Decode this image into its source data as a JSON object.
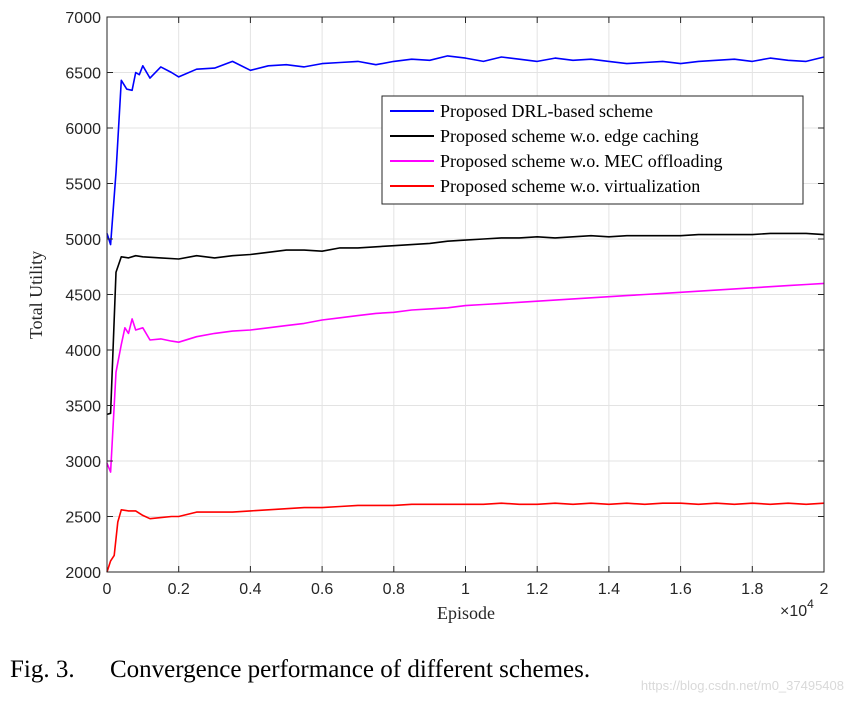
{
  "chart_data": {
    "type": "line",
    "xlabel": "Episode",
    "ylabel": "Total Utility",
    "x_multiplier": "×10",
    "x_multiplier_exp": "4",
    "xlim": [
      0,
      2
    ],
    "ylim": [
      2000,
      7000
    ],
    "x_ticks": [
      "0",
      "0.2",
      "0.4",
      "0.6",
      "0.8",
      "1",
      "1.2",
      "1.4",
      "1.6",
      "1.8",
      "2"
    ],
    "y_ticks": [
      "2000",
      "2500",
      "3000",
      "3500",
      "4000",
      "4500",
      "5000",
      "5500",
      "6000",
      "6500",
      "7000"
    ],
    "grid": true,
    "legend_position": "upper-right",
    "series": [
      {
        "name": "Proposed DRL-based scheme",
        "color": "#0000ff",
        "points": [
          [
            0,
            5050
          ],
          [
            0.01,
            4950
          ],
          [
            0.025,
            5600
          ],
          [
            0.04,
            6430
          ],
          [
            0.055,
            6350
          ],
          [
            0.07,
            6340
          ],
          [
            0.08,
            6500
          ],
          [
            0.09,
            6480
          ],
          [
            0.1,
            6560
          ],
          [
            0.12,
            6450
          ],
          [
            0.15,
            6550
          ],
          [
            0.18,
            6500
          ],
          [
            0.2,
            6460
          ],
          [
            0.25,
            6530
          ],
          [
            0.3,
            6540
          ],
          [
            0.35,
            6600
          ],
          [
            0.4,
            6520
          ],
          [
            0.45,
            6560
          ],
          [
            0.5,
            6570
          ],
          [
            0.55,
            6550
          ],
          [
            0.6,
            6580
          ],
          [
            0.65,
            6590
          ],
          [
            0.7,
            6600
          ],
          [
            0.75,
            6570
          ],
          [
            0.8,
            6600
          ],
          [
            0.85,
            6620
          ],
          [
            0.9,
            6610
          ],
          [
            0.95,
            6650
          ],
          [
            1.0,
            6630
          ],
          [
            1.05,
            6600
          ],
          [
            1.1,
            6640
          ],
          [
            1.15,
            6620
          ],
          [
            1.2,
            6600
          ],
          [
            1.25,
            6630
          ],
          [
            1.3,
            6610
          ],
          [
            1.35,
            6620
          ],
          [
            1.4,
            6600
          ],
          [
            1.45,
            6580
          ],
          [
            1.5,
            6590
          ],
          [
            1.55,
            6600
          ],
          [
            1.6,
            6580
          ],
          [
            1.65,
            6600
          ],
          [
            1.7,
            6610
          ],
          [
            1.75,
            6620
          ],
          [
            1.8,
            6600
          ],
          [
            1.85,
            6630
          ],
          [
            1.9,
            6610
          ],
          [
            1.95,
            6600
          ],
          [
            2.0,
            6640
          ]
        ]
      },
      {
        "name": "Proposed scheme w.o. edge caching",
        "color": "#000000",
        "points": [
          [
            0,
            3420
          ],
          [
            0.01,
            3430
          ],
          [
            0.025,
            4700
          ],
          [
            0.04,
            4840
          ],
          [
            0.06,
            4830
          ],
          [
            0.08,
            4850
          ],
          [
            0.1,
            4840
          ],
          [
            0.15,
            4830
          ],
          [
            0.2,
            4820
          ],
          [
            0.25,
            4850
          ],
          [
            0.3,
            4830
          ],
          [
            0.35,
            4850
          ],
          [
            0.4,
            4860
          ],
          [
            0.45,
            4880
          ],
          [
            0.5,
            4900
          ],
          [
            0.55,
            4900
          ],
          [
            0.6,
            4890
          ],
          [
            0.65,
            4920
          ],
          [
            0.7,
            4920
          ],
          [
            0.75,
            4930
          ],
          [
            0.8,
            4940
          ],
          [
            0.85,
            4950
          ],
          [
            0.9,
            4960
          ],
          [
            0.95,
            4980
          ],
          [
            1.0,
            4990
          ],
          [
            1.05,
            5000
          ],
          [
            1.1,
            5010
          ],
          [
            1.15,
            5010
          ],
          [
            1.2,
            5020
          ],
          [
            1.25,
            5010
          ],
          [
            1.3,
            5020
          ],
          [
            1.35,
            5030
          ],
          [
            1.4,
            5020
          ],
          [
            1.45,
            5030
          ],
          [
            1.5,
            5030
          ],
          [
            1.55,
            5030
          ],
          [
            1.6,
            5030
          ],
          [
            1.65,
            5040
          ],
          [
            1.7,
            5040
          ],
          [
            1.75,
            5040
          ],
          [
            1.8,
            5040
          ],
          [
            1.85,
            5050
          ],
          [
            1.9,
            5050
          ],
          [
            1.95,
            5050
          ],
          [
            2.0,
            5040
          ]
        ]
      },
      {
        "name": "Proposed scheme w.o. MEC offloading",
        "color": "#ff00ff",
        "points": [
          [
            0,
            2980
          ],
          [
            0.01,
            2900
          ],
          [
            0.025,
            3800
          ],
          [
            0.04,
            4050
          ],
          [
            0.05,
            4200
          ],
          [
            0.06,
            4150
          ],
          [
            0.07,
            4280
          ],
          [
            0.08,
            4180
          ],
          [
            0.1,
            4200
          ],
          [
            0.12,
            4090
          ],
          [
            0.15,
            4100
          ],
          [
            0.18,
            4080
          ],
          [
            0.2,
            4070
          ],
          [
            0.25,
            4120
          ],
          [
            0.3,
            4150
          ],
          [
            0.35,
            4170
          ],
          [
            0.4,
            4180
          ],
          [
            0.45,
            4200
          ],
          [
            0.5,
            4220
          ],
          [
            0.55,
            4240
          ],
          [
            0.6,
            4270
          ],
          [
            0.65,
            4290
          ],
          [
            0.7,
            4310
          ],
          [
            0.75,
            4330
          ],
          [
            0.8,
            4340
          ],
          [
            0.85,
            4360
          ],
          [
            0.9,
            4370
          ],
          [
            0.95,
            4380
          ],
          [
            1.0,
            4400
          ],
          [
            1.05,
            4410
          ],
          [
            1.1,
            4420
          ],
          [
            1.15,
            4430
          ],
          [
            1.2,
            4440
          ],
          [
            1.25,
            4450
          ],
          [
            1.3,
            4460
          ],
          [
            1.35,
            4470
          ],
          [
            1.4,
            4480
          ],
          [
            1.45,
            4490
          ],
          [
            1.5,
            4500
          ],
          [
            1.55,
            4510
          ],
          [
            1.6,
            4520
          ],
          [
            1.65,
            4530
          ],
          [
            1.7,
            4540
          ],
          [
            1.75,
            4550
          ],
          [
            1.8,
            4560
          ],
          [
            1.85,
            4570
          ],
          [
            1.9,
            4580
          ],
          [
            1.95,
            4590
          ],
          [
            2.0,
            4600
          ]
        ]
      },
      {
        "name": "Proposed scheme w.o. virtualization",
        "color": "#ff0000",
        "points": [
          [
            0,
            2000
          ],
          [
            0.01,
            2100
          ],
          [
            0.02,
            2150
          ],
          [
            0.03,
            2450
          ],
          [
            0.04,
            2560
          ],
          [
            0.06,
            2550
          ],
          [
            0.08,
            2550
          ],
          [
            0.1,
            2510
          ],
          [
            0.12,
            2480
          ],
          [
            0.15,
            2490
          ],
          [
            0.18,
            2500
          ],
          [
            0.2,
            2500
          ],
          [
            0.25,
            2540
          ],
          [
            0.3,
            2540
          ],
          [
            0.35,
            2540
          ],
          [
            0.4,
            2550
          ],
          [
            0.45,
            2560
          ],
          [
            0.5,
            2570
          ],
          [
            0.55,
            2580
          ],
          [
            0.6,
            2580
          ],
          [
            0.65,
            2590
          ],
          [
            0.7,
            2600
          ],
          [
            0.75,
            2600
          ],
          [
            0.8,
            2600
          ],
          [
            0.85,
            2610
          ],
          [
            0.9,
            2610
          ],
          [
            0.95,
            2610
          ],
          [
            1.0,
            2610
          ],
          [
            1.05,
            2610
          ],
          [
            1.1,
            2620
          ],
          [
            1.15,
            2610
          ],
          [
            1.2,
            2610
          ],
          [
            1.25,
            2620
          ],
          [
            1.3,
            2610
          ],
          [
            1.35,
            2620
          ],
          [
            1.4,
            2610
          ],
          [
            1.45,
            2620
          ],
          [
            1.5,
            2610
          ],
          [
            1.55,
            2620
          ],
          [
            1.6,
            2620
          ],
          [
            1.65,
            2610
          ],
          [
            1.7,
            2620
          ],
          [
            1.75,
            2610
          ],
          [
            1.8,
            2620
          ],
          [
            1.85,
            2610
          ],
          [
            1.9,
            2620
          ],
          [
            1.95,
            2610
          ],
          [
            2.0,
            2620
          ]
        ]
      }
    ]
  },
  "caption": {
    "label": "Fig. 3.",
    "text": "Convergence performance of different schemes."
  },
  "watermark": "https://blog.csdn.net/m0_37495408"
}
